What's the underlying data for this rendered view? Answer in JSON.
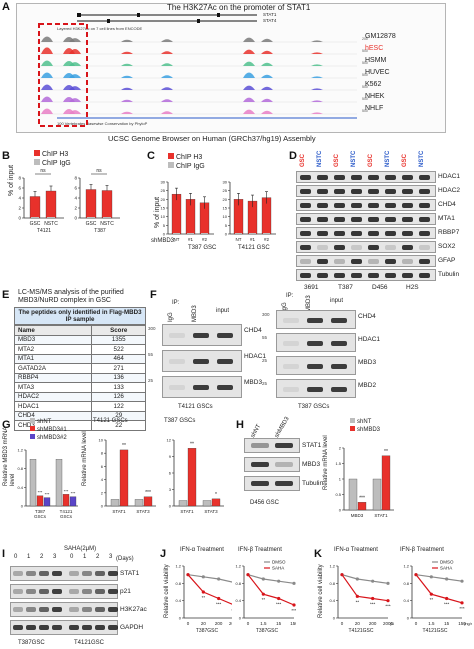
{
  "panelA": {
    "letter": "A",
    "title": "The H3K27Ac on the promoter of STAT1",
    "genes": [
      "STAT1",
      "STAT4"
    ],
    "tracks": [
      {
        "name": "GM12878",
        "color": "#7a7a7a"
      },
      {
        "name": "hESC",
        "color": "#e8312b"
      },
      {
        "name": "HSMM",
        "color": "#4fc08d"
      },
      {
        "name": "HUVEC",
        "color": "#3aa0e0"
      },
      {
        "name": "K562",
        "color": "#5a4fd6"
      },
      {
        "name": "NHEK",
        "color": "#b36ad9"
      },
      {
        "name": "NHLF",
        "color": "#e87fc6"
      }
    ],
    "scale_marks": [
      "200",
      "500",
      "500",
      "500",
      "500",
      "500",
      "500"
    ],
    "footer": "UCSC Genome Browser on Human (GRCh37/hg19) Assembly"
  },
  "panelB": {
    "letter": "B",
    "legend": [
      "ChIP H3",
      "ChIP IgG"
    ],
    "ylabel": "% of input",
    "ns": "ns",
    "groups": [
      {
        "label": "T4121",
        "cats": [
          "GSC",
          "NSTC"
        ]
      },
      {
        "label": "T387",
        "cats": [
          "GSC",
          "NSTC"
        ]
      }
    ],
    "yticks": [
      "0",
      "2",
      "4",
      "6",
      "8"
    ]
  },
  "panelC": {
    "letter": "C",
    "legend": [
      "ChIP H3",
      "ChIP IgG"
    ],
    "ylabel": "% of input",
    "xrow": [
      "shMBD3:",
      "NT",
      "#1",
      "#2"
    ],
    "groups": [
      "T387 GSC",
      "T4121 GSC"
    ],
    "yticks": [
      "0",
      "5",
      "10",
      "15",
      "20",
      "25",
      "30"
    ]
  },
  "panelD": {
    "letter": "D",
    "col_labels": [
      "GSC",
      "NSTC",
      "GSC",
      "NSTC",
      "GSC",
      "NSTC",
      "GSC",
      "NSTC"
    ],
    "rows": [
      "HDAC1",
      "HDAC2",
      "CHD4",
      "MTA1",
      "RBBP7",
      "SOX2",
      "GFAP",
      "Tubulin"
    ],
    "groups": [
      "3691",
      "T387",
      "D456",
      "H2S"
    ]
  },
  "panelE": {
    "letter": "E",
    "caption": "LC-MS/MS analysis of the purified MBD3/NuRD complex in GSC",
    "header": "The peptides only identified in Flag-MBD3 IP sample",
    "columns": [
      "Name",
      "Score"
    ],
    "rows": [
      [
        "MBD3",
        "1355"
      ],
      [
        "MTA2",
        "522"
      ],
      [
        "MTA1",
        "464"
      ],
      [
        "GATAD2A",
        "271"
      ],
      [
        "RBBP4",
        "136"
      ],
      [
        "MTA3",
        "133"
      ],
      [
        "HDAC2",
        "126"
      ],
      [
        "HDAC1",
        "122"
      ],
      [
        "CHD4",
        "29"
      ],
      [
        "CHD3",
        "22"
      ]
    ]
  },
  "panelF": {
    "letter": "F",
    "ip": "IP:",
    "left_cols": [
      "IgG",
      "MBD3",
      "input"
    ],
    "left_rows": [
      "CHD4",
      "HDAC1",
      "MBD3"
    ],
    "left_mw": [
      "300",
      "55",
      "25"
    ],
    "left_caption": "T4121 GSCs",
    "right_cols": [
      "IgG",
      "MBD3",
      "input"
    ],
    "right_rows": [
      "CHD4",
      "HDAC1",
      "MBD3",
      "MBD2"
    ],
    "right_mw": [
      "300",
      "55",
      "25",
      "25"
    ],
    "right_caption": "T387 GSCs"
  },
  "panelG": {
    "letter": "G",
    "legend": [
      "shNT",
      "shMBD3#1",
      "shMBD3#2"
    ],
    "ylabel1": "Relative MBD3 mRNA level",
    "ylabel2": "Relative mRNA level",
    "sub1": "T4121 GSCs",
    "sub2": "T387 GSCs",
    "x1": [
      "T387 GSCs",
      "T4121 GSCs"
    ],
    "x2": [
      "STAT1",
      "STAT3"
    ],
    "x3": [
      "STAT1",
      "STAT3"
    ],
    "stars": [
      "**",
      "***",
      "**",
      "***",
      "*"
    ]
  },
  "panelH": {
    "letter": "H",
    "cols": [
      "shNT",
      "shMBD3"
    ],
    "rows": [
      "STAT1",
      "MBD3",
      "Tubulin"
    ],
    "caption": "D456 GSC",
    "legend": [
      "shNT",
      "shMBD3"
    ],
    "ylabel": "Relative mRNA level",
    "x": [
      "MBD3",
      "STAT1"
    ],
    "stars": [
      "***",
      "**"
    ]
  },
  "panelI": {
    "letter": "I",
    "treat": "SAHA(2μM)",
    "days_label": "(Days)",
    "days": [
      "0",
      "1",
      "2",
      "3",
      "0",
      "1",
      "2",
      "3"
    ],
    "rows": [
      "STAT1",
      "p21",
      "H3K27ac",
      "GAPDH"
    ],
    "groups": [
      "T387GSC",
      "T4121GSC"
    ]
  },
  "panelJ": {
    "letter": "J",
    "title1": "IFN-α Treatment",
    "title2": "IFN-β Treatment",
    "ylabel": "Relative cell viability",
    "legend": [
      "DMSO",
      "SAHA"
    ],
    "x1": [
      "0",
      "20",
      "200",
      "2000"
    ],
    "unit1": "(U/ml)",
    "x2": [
      "0",
      "1.5",
      "15",
      "150"
    ],
    "unit2": "(ng/ml)",
    "sub": [
      "T387GSC",
      "T387GSC"
    ]
  },
  "panelK": {
    "letter": "K",
    "title1": "IFN-α Treatment",
    "title2": "IFN-β Treatment",
    "ylabel": "Relative cell viability",
    "legend": [
      "DMSO",
      "SAHA"
    ],
    "x1": [
      "0",
      "20",
      "200",
      "2000"
    ],
    "unit1": "(U/ml)",
    "x2": [
      "0",
      "1.5",
      "15",
      "150"
    ],
    "unit2": "(ng/ml)",
    "sub": [
      "T4121GSC",
      "T4121GSC"
    ]
  },
  "chart_data": [
    {
      "panel": "B",
      "type": "bar",
      "title": "",
      "categories": [
        "T4121 GSC",
        "T4121 NSTC",
        "T387 GSC",
        "T387 NSTC"
      ],
      "series": [
        {
          "name": "ChIP H3",
          "values": [
            4.3,
            5.4,
            5.7,
            5.5
          ]
        },
        {
          "name": "ChIP IgG",
          "values": [
            0,
            0,
            0,
            0
          ]
        }
      ],
      "ylabel": "% of input",
      "ylim": [
        0,
        8
      ]
    },
    {
      "panel": "C",
      "type": "bar",
      "title": "",
      "categories": [
        "T387 NT",
        "T387 #1",
        "T387 #2",
        "T4121 NT",
        "T4121 #1",
        "T4121 #2"
      ],
      "series": [
        {
          "name": "ChIP H3",
          "values": [
            23,
            20,
            18,
            20,
            19,
            21
          ]
        }
      ],
      "ylabel": "% of input",
      "ylim": [
        0,
        30
      ]
    },
    {
      "panel": "G1",
      "type": "bar",
      "title": "",
      "categories": [
        "T387 GSCs",
        "T4121 GSCs"
      ],
      "series": [
        {
          "name": "shNT",
          "values": [
            1.0,
            1.0
          ]
        },
        {
          "name": "shMBD3#1",
          "values": [
            0.22,
            0.25
          ]
        },
        {
          "name": "shMBD3#2",
          "values": [
            0.18,
            0.2
          ]
        }
      ],
      "ylabel": "Relative MBD3 mRNA level",
      "ylim": [
        0,
        1.2
      ]
    },
    {
      "panel": "G2",
      "type": "bar",
      "title": "T4121 GSCs",
      "categories": [
        "STAT1",
        "STAT3"
      ],
      "series": [
        {
          "name": "shNT",
          "values": [
            1.0,
            1.0
          ]
        },
        {
          "name": "shMBD3",
          "values": [
            8.5,
            1.4
          ]
        }
      ],
      "ylabel": "Relative mRNA level",
      "ylim": [
        0,
        10
      ]
    },
    {
      "panel": "G3",
      "type": "bar",
      "title": "T387 GSCs",
      "categories": [
        "STAT1",
        "STAT3"
      ],
      "series": [
        {
          "name": "shNT",
          "values": [
            1.0,
            1.0
          ]
        },
        {
          "name": "shMBD3",
          "values": [
            10.5,
            1.3
          ]
        }
      ],
      "ylim": [
        0,
        12
      ]
    },
    {
      "panel": "H",
      "type": "bar",
      "title": "",
      "categories": [
        "MBD3",
        "STAT1"
      ],
      "series": [
        {
          "name": "shNT",
          "values": [
            1.0,
            1.0
          ]
        },
        {
          "name": "shMBD3",
          "values": [
            0.25,
            1.75
          ]
        }
      ],
      "ylabel": "Relative mRNA level",
      "ylim": [
        0,
        2
      ]
    },
    {
      "panel": "J1",
      "type": "line",
      "title": "IFN-α Treatment",
      "x": [
        "0",
        "20",
        "200",
        "2000"
      ],
      "series": [
        {
          "name": "DMSO",
          "values": [
            1.0,
            0.95,
            0.9,
            0.82
          ]
        },
        {
          "name": "SAHA",
          "values": [
            1.0,
            0.6,
            0.45,
            0.3
          ]
        }
      ],
      "ylabel": "Relative cell viability",
      "ylim": [
        0,
        1.2
      ]
    },
    {
      "panel": "J2",
      "type": "line",
      "title": "IFN-β Treatment",
      "x": [
        "0",
        "1.5",
        "15",
        "150"
      ],
      "series": [
        {
          "name": "DMSO",
          "values": [
            1.0,
            0.9,
            0.85,
            0.8
          ]
        },
        {
          "name": "SAHA",
          "values": [
            1.0,
            0.55,
            0.45,
            0.3
          ]
        }
      ],
      "ylim": [
        0,
        1.2
      ]
    },
    {
      "panel": "K1",
      "type": "line",
      "title": "IFN-α Treatment",
      "x": [
        "0",
        "20",
        "200",
        "2000"
      ],
      "series": [
        {
          "name": "DMSO",
          "values": [
            1.0,
            0.9,
            0.85,
            0.8
          ]
        },
        {
          "name": "SAHA",
          "values": [
            1.0,
            0.5,
            0.45,
            0.4
          ]
        }
      ],
      "ylabel": "Relative cell viability",
      "ylim": [
        0,
        1.2
      ]
    },
    {
      "panel": "K2",
      "type": "line",
      "title": "IFN-β Treatment",
      "x": [
        "0",
        "1.5",
        "15",
        "150"
      ],
      "series": [
        {
          "name": "DMSO",
          "values": [
            1.0,
            0.95,
            0.9,
            0.85
          ]
        },
        {
          "name": "SAHA",
          "values": [
            1.0,
            0.55,
            0.45,
            0.35
          ]
        }
      ],
      "ylim": [
        0,
        1.2
      ]
    }
  ]
}
